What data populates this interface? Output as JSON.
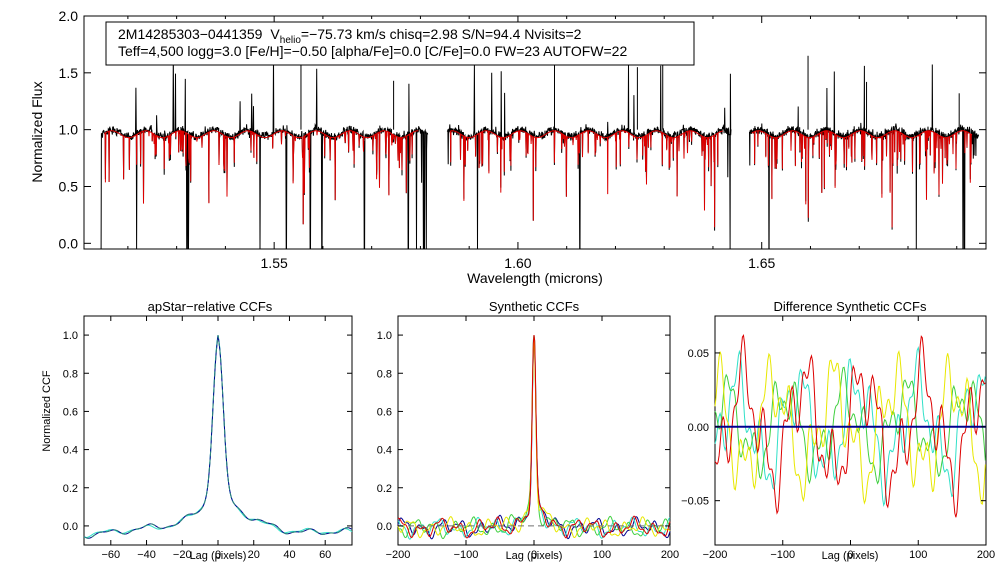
{
  "chart_data": [
    {
      "type": "line",
      "panel": "spectrum",
      "title": "",
      "xlabel": "Wavelength (microns)",
      "ylabel": "Normalized Flux",
      "xlim": [
        1.511,
        1.696
      ],
      "ylim": [
        -0.05,
        2.0
      ],
      "xticks": [
        1.55,
        1.6,
        1.65
      ],
      "xtick_labels": [
        "1.55",
        "1.60",
        "1.65"
      ],
      "yticks": [
        0.0,
        0.5,
        1.0,
        1.5,
        2.0
      ],
      "ytick_labels": [
        "0.0",
        "0.5",
        "1.0",
        "1.5",
        "2.0"
      ],
      "info_line1_star": "2M14285303−0441359",
      "info_v": "V",
      "info_helio": "helio",
      "info_line1_rest": "=−75.73 km/s  chisq=2.98  S/N=94.4  Nvisits=2",
      "info_line2": "Teff=4,500 logg=3.0 [Fe/H]=−0.50 [alpha/Fe]=0.0 [C/Fe]=0.0 FW=23 AUTOFW=22",
      "chips": [
        [
          1.5145,
          1.5815
        ],
        [
          1.5855,
          1.6437
        ],
        [
          1.6475,
          1.6945
        ]
      ],
      "series": [
        {
          "name": "observed",
          "color": "#000000"
        },
        {
          "name": "model",
          "color": "#dd0000"
        }
      ],
      "deep_lines": [
        1.5145,
        1.5218,
        1.5321,
        1.5324,
        1.5471,
        1.5525,
        1.5574,
        1.5598,
        1.5685,
        1.5775,
        1.5792,
        1.5806,
        1.5808,
        1.5812,
        1.5917,
        1.6127,
        1.6435,
        1.6515,
        1.6817,
        1.6913,
        1.6916
      ]
    },
    {
      "type": "line",
      "panel": "apstar-ccf",
      "title": "apStar−relative CCFs",
      "xlabel": "Lag (pixels)",
      "ylabel": "Normalized CCF",
      "xlim": [
        -75,
        75
      ],
      "ylim": [
        -0.1,
        1.1
      ],
      "xticks": [
        -60,
        -40,
        -20,
        0,
        20,
        40,
        60
      ],
      "xtick_labels": [
        "−60",
        "−40",
        "−20",
        "0",
        "20",
        "40",
        "60"
      ],
      "yticks": [
        0.0,
        0.2,
        0.4,
        0.6,
        0.8,
        1.0
      ],
      "ytick_labels": [
        "0.0",
        "0.2",
        "0.4",
        "0.6",
        "0.8",
        "1.0"
      ],
      "series": [
        {
          "name": "visit-1",
          "color": "#000090"
        },
        {
          "name": "visit-2",
          "color": "#30e0c8"
        },
        {
          "name": "combined",
          "color": "#308a7a",
          "dashed": true
        }
      ]
    },
    {
      "type": "line",
      "panel": "synthetic-ccf",
      "title": "Synthetic CCFs",
      "xlabel": "Lag (pixels)",
      "ylabel": "",
      "xlim": [
        -200,
        200
      ],
      "ylim": [
        -0.1,
        1.1
      ],
      "xticks": [
        -200,
        -100,
        0,
        100,
        200
      ],
      "xtick_labels": [
        "−200",
        "−100",
        "0",
        "100",
        "200"
      ],
      "yticks": [
        0.0,
        0.2,
        0.4,
        0.6,
        0.8,
        1.0
      ],
      "ytick_labels": [
        "0.0",
        "0.2",
        "0.4",
        "0.6",
        "0.8",
        "1.0"
      ],
      "series": [
        {
          "name": "blue",
          "color": "#000090"
        },
        {
          "name": "cyan",
          "color": "#30e0c8"
        },
        {
          "name": "green",
          "color": "#40d040"
        },
        {
          "name": "yellow",
          "color": "#e8e800"
        },
        {
          "name": "red",
          "color": "#dd0000"
        },
        {
          "name": "zero",
          "color": "#707070",
          "dashed": true
        }
      ]
    },
    {
      "type": "line",
      "panel": "difference-ccf",
      "title": "Difference Synthetic CCFs",
      "xlabel": "Lag (pixels)",
      "ylabel": "",
      "xlim": [
        -200,
        200
      ],
      "ylim": [
        -0.08,
        0.075
      ],
      "xticks": [
        -200,
        -100,
        0,
        100,
        200
      ],
      "xtick_labels": [
        "−200",
        "−100",
        "0",
        "100",
        "200"
      ],
      "yticks": [
        -0.05,
        0.0,
        0.05
      ],
      "ytick_labels": [
        "−0.05",
        "0.00",
        "0.05"
      ],
      "series": [
        {
          "name": "cyan",
          "color": "#30e0c8"
        },
        {
          "name": "green",
          "color": "#40d040"
        },
        {
          "name": "yellow",
          "color": "#e8e800"
        },
        {
          "name": "red",
          "color": "#dd0000"
        },
        {
          "name": "zero",
          "color": "#000090"
        }
      ]
    }
  ]
}
